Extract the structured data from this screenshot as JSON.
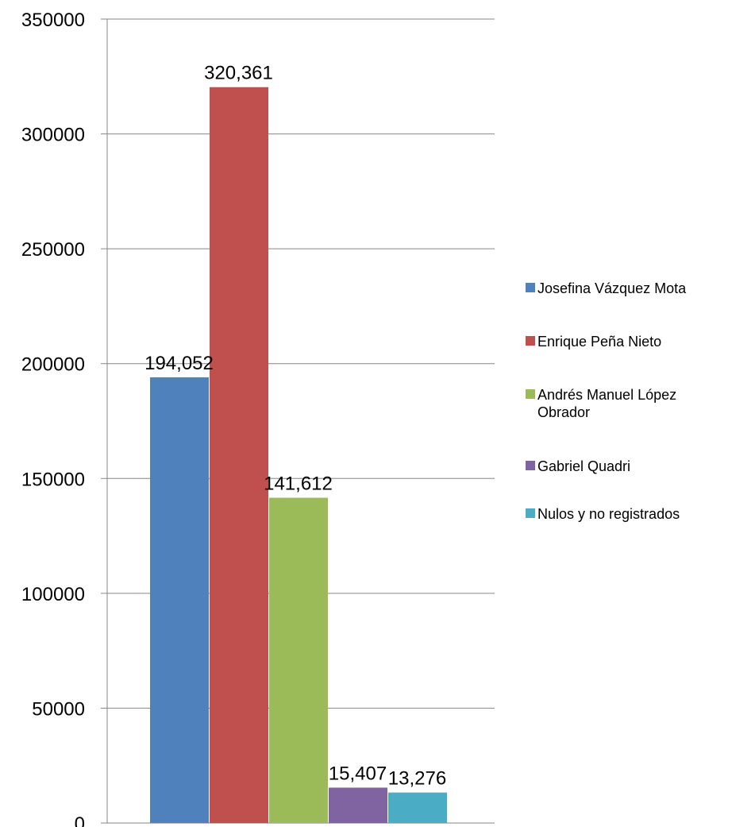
{
  "chart_data": {
    "type": "bar",
    "title": "",
    "xlabel": "",
    "ylabel": "",
    "ylim": [
      0,
      350000
    ],
    "yticks": [
      0,
      50000,
      100000,
      150000,
      200000,
      250000,
      300000,
      350000
    ],
    "grid": true,
    "legend_position": "right",
    "series": [
      {
        "name": "Josefina Vázquez Mota",
        "value": 194052,
        "label": "194,052",
        "color": "#4F81BD"
      },
      {
        "name": "Enrique Peña Nieto",
        "value": 320361,
        "label": "320,361",
        "color": "#C0504D"
      },
      {
        "name": "Andrés Manuel López Obrador",
        "value": 141612,
        "label": "141,612",
        "color": "#9BBB59"
      },
      {
        "name": "Gabriel Quadri",
        "value": 15407,
        "label": "15,407",
        "color": "#8064A2"
      },
      {
        "name": "Nulos y no registrados",
        "value": 13276,
        "label": "13,276",
        "color": "#4BACC6"
      }
    ]
  }
}
